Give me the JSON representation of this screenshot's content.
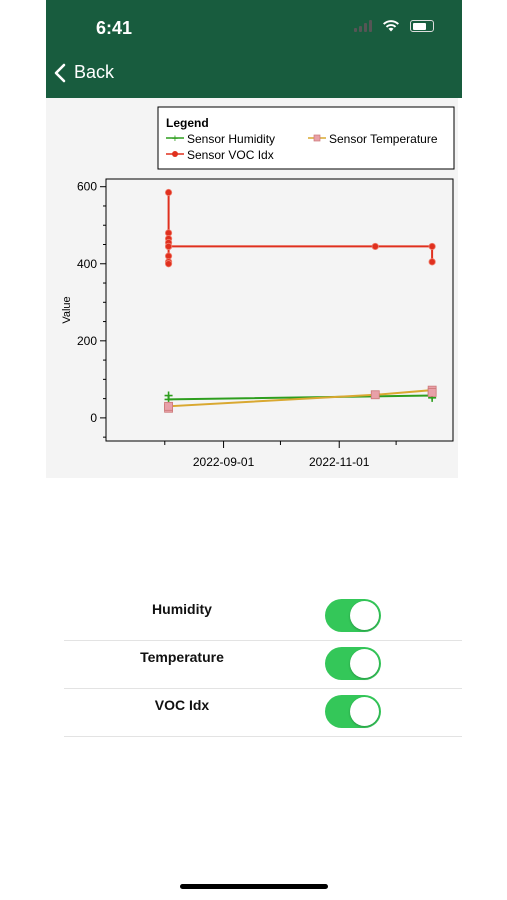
{
  "status": {
    "time": "6:41"
  },
  "nav": {
    "back_label": "Back"
  },
  "chart_data": {
    "type": "line",
    "ylabel": "Value",
    "ylim": [
      -60,
      620
    ],
    "y_ticks": [
      0,
      200,
      400,
      600
    ],
    "x_ticks": [
      "2022-09-01",
      "2022-11-01"
    ],
    "xlim": [
      "2022-07-01",
      "2022-12-31"
    ],
    "legend": {
      "title": "Legend",
      "placement": "top",
      "entries": [
        "Sensor Humidity",
        "Sensor Temperature",
        "Sensor VOC Idx"
      ]
    },
    "series": [
      {
        "name": "Sensor Humidity",
        "color": "#2e9e1e",
        "marker": "plus",
        "points": [
          {
            "x": "2022-08-03",
            "y": 58
          },
          {
            "x": "2022-08-03",
            "y": 48
          },
          {
            "x": "2022-12-20",
            "y": 58
          },
          {
            "x": "2022-12-20",
            "y": 52
          }
        ]
      },
      {
        "name": "Sensor Temperature",
        "color": "#d9a830",
        "marker": "square",
        "points": [
          {
            "x": "2022-08-03",
            "y": 25
          },
          {
            "x": "2022-08-03",
            "y": 30
          },
          {
            "x": "2022-11-20",
            "y": 60
          },
          {
            "x": "2022-12-20",
            "y": 72
          },
          {
            "x": "2022-12-20",
            "y": 66
          }
        ]
      },
      {
        "name": "Sensor VOC Idx",
        "color": "#e0301e",
        "marker": "circle",
        "points": [
          {
            "x": "2022-08-03",
            "y": 585
          },
          {
            "x": "2022-08-03",
            "y": 480
          },
          {
            "x": "2022-08-03",
            "y": 465
          },
          {
            "x": "2022-08-03",
            "y": 455
          },
          {
            "x": "2022-08-03",
            "y": 445
          },
          {
            "x": "2022-08-03",
            "y": 420
          },
          {
            "x": "2022-08-03",
            "y": 405
          },
          {
            "x": "2022-08-03",
            "y": 400
          },
          {
            "x": "2022-08-03",
            "y": 445
          },
          {
            "x": "2022-11-20",
            "y": 445
          },
          {
            "x": "2022-12-20",
            "y": 445
          },
          {
            "x": "2022-12-20",
            "y": 405
          }
        ]
      }
    ]
  },
  "toggles": [
    {
      "label": "Humidity",
      "on": true
    },
    {
      "label": "Temperature",
      "on": true
    },
    {
      "label": "VOC Idx",
      "on": true
    }
  ],
  "colors": {
    "header": "#185c3e",
    "switch_on": "#34c759"
  }
}
